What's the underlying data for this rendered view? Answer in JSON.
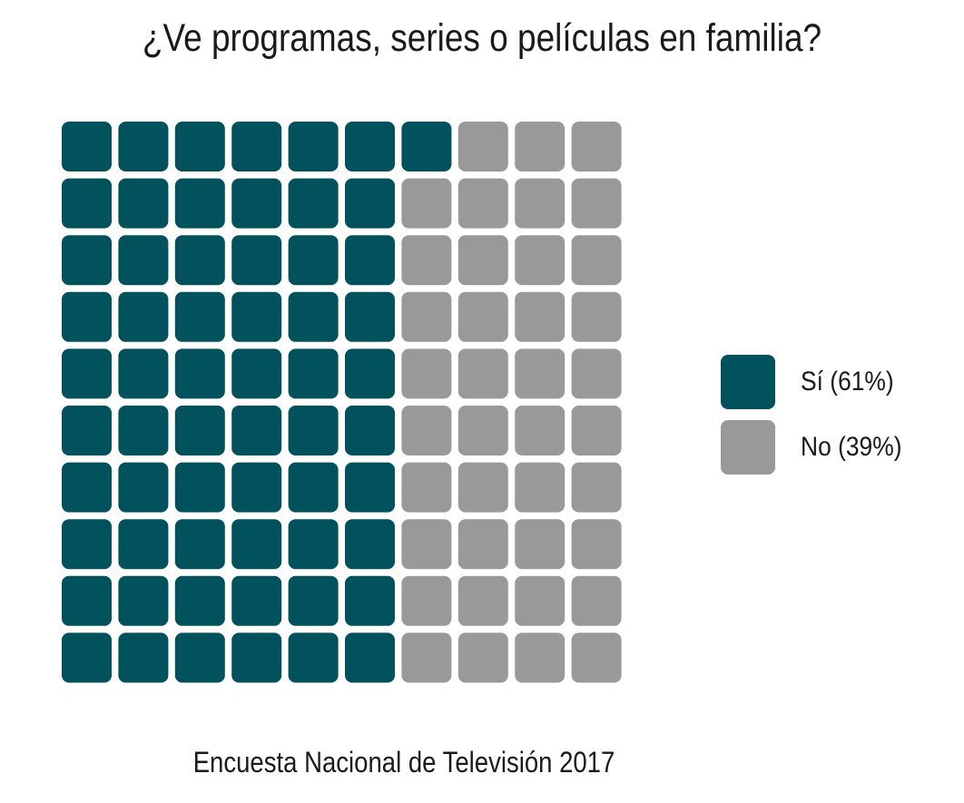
{
  "chart_data": {
    "type": "waffle",
    "title": "¿Ve programas, series o películas en familia?",
    "caption": "Encuesta Nacional de Televisión 2017",
    "grid": {
      "rows": 10,
      "cols": 10
    },
    "fill_order": "column-major, top to bottom, left to right",
    "series": [
      {
        "name": "Sí (61%)",
        "label": "Sí (61%)",
        "value": 61,
        "color": "#02525e"
      },
      {
        "name": "No (39%)",
        "label": "No (39%)",
        "value": 39,
        "color": "#999999"
      }
    ],
    "legend_position": "right"
  }
}
